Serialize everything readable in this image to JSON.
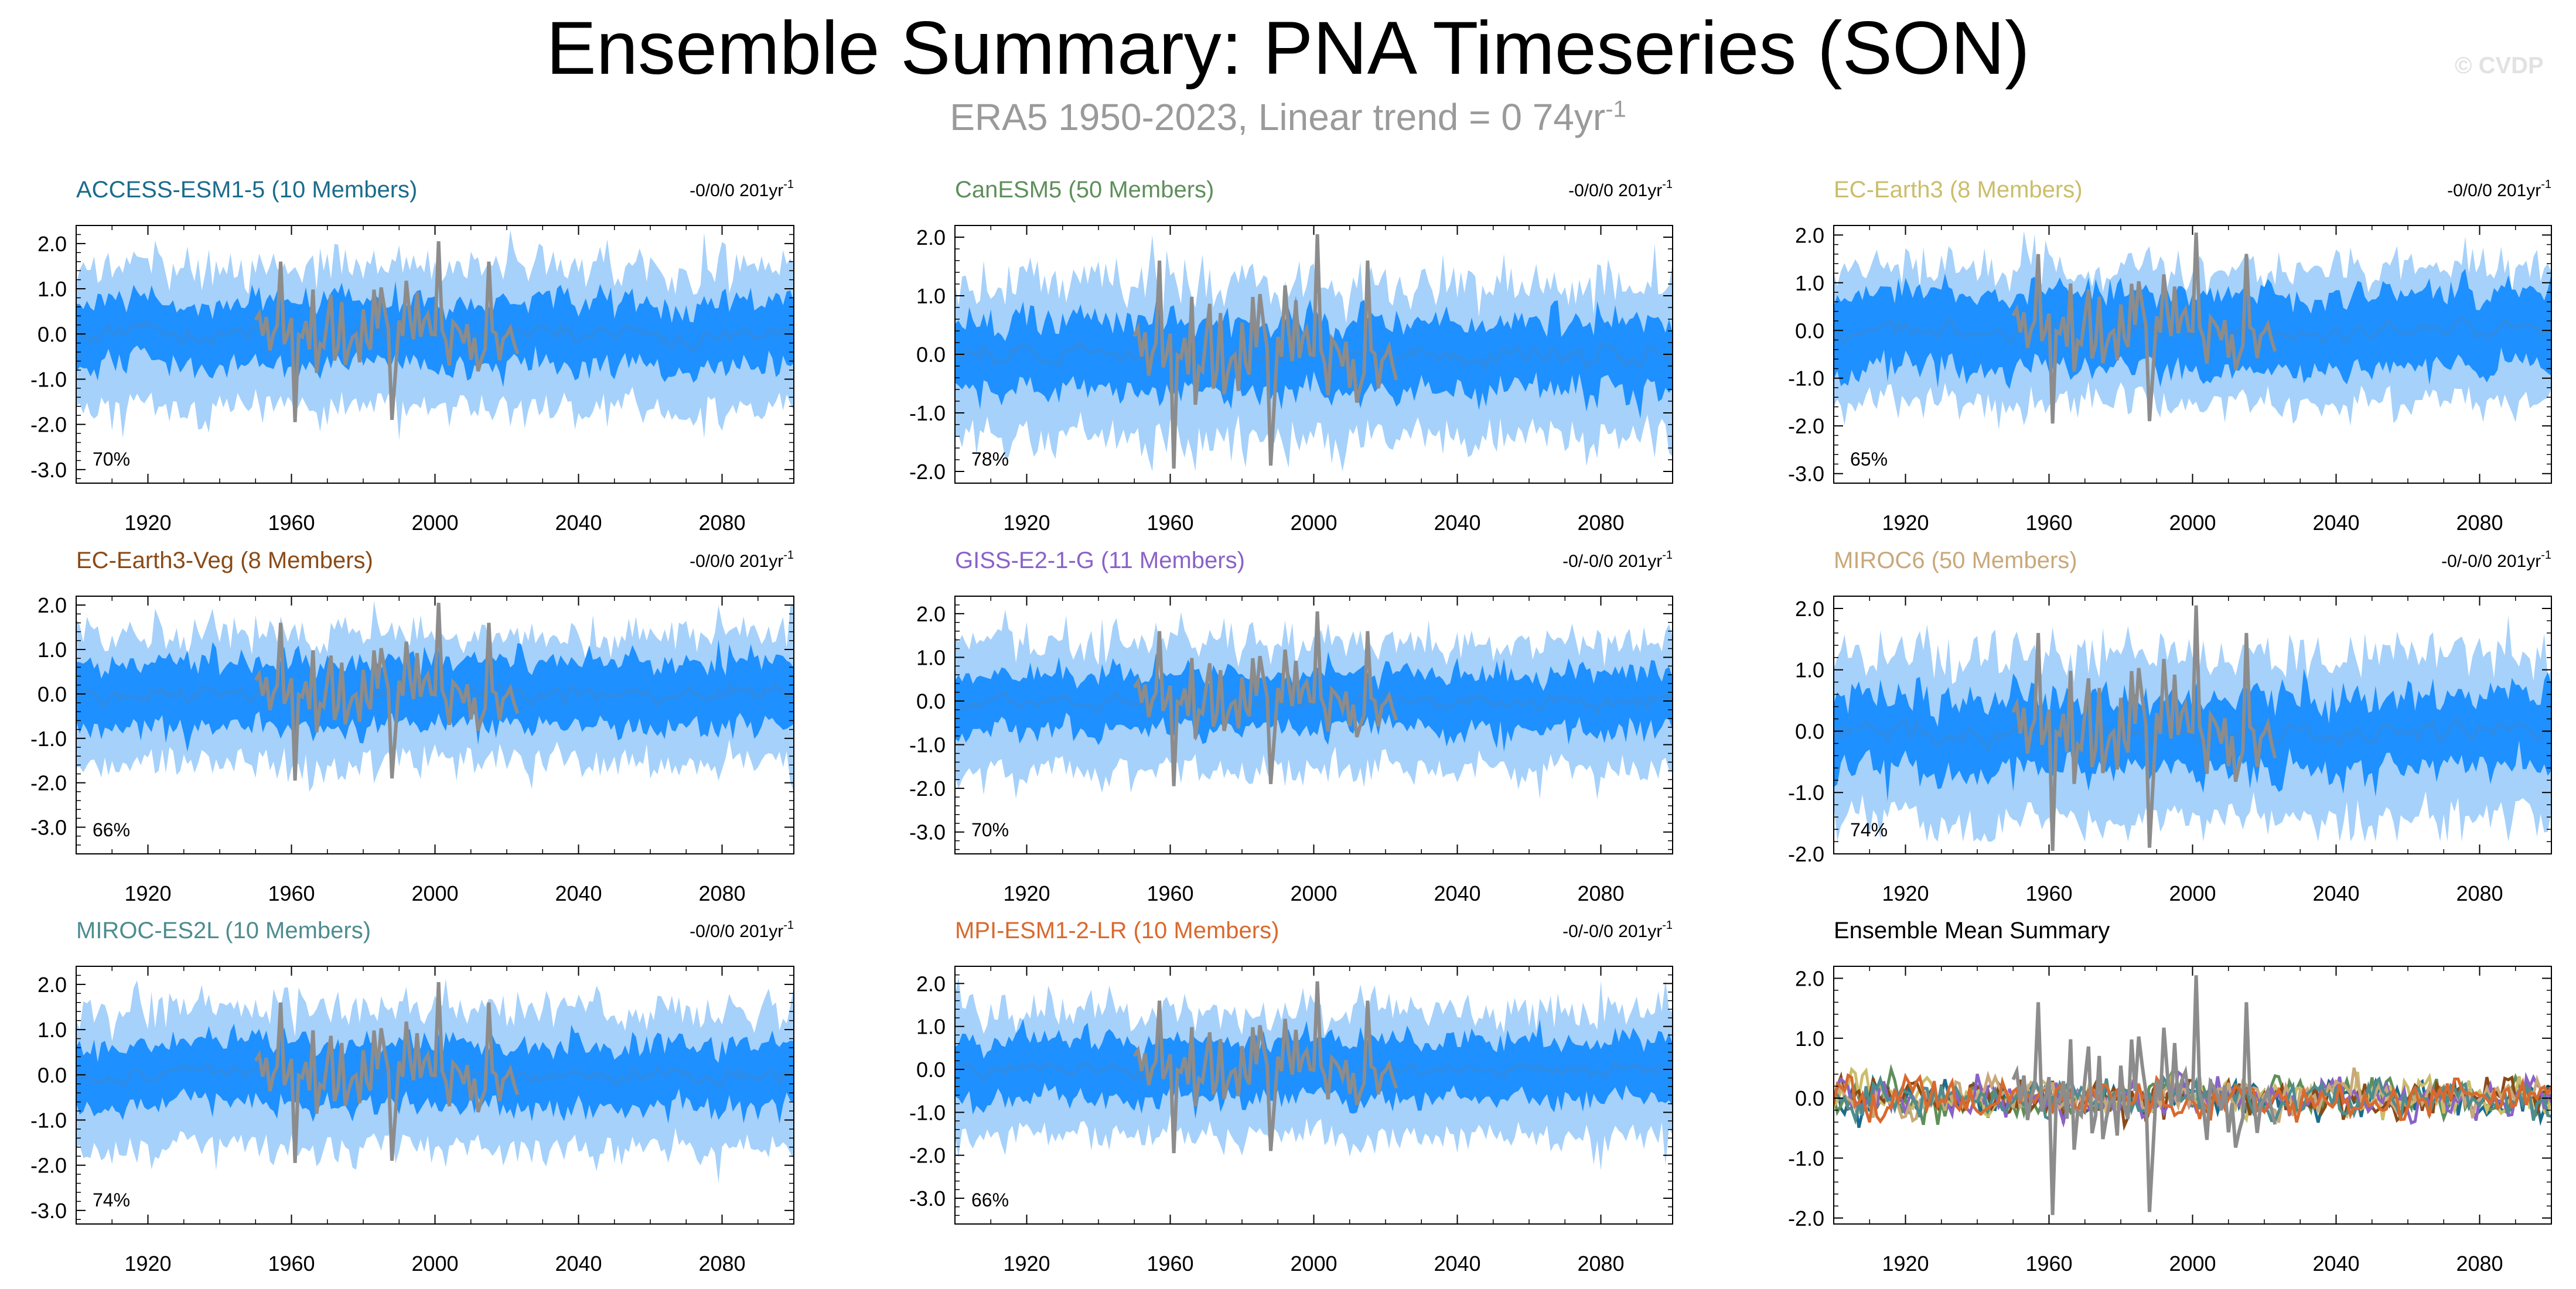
{
  "title": "Ensemble Summary: PNA Timeseries (SON)",
  "subtitle": {
    "main": "ERA5 1950-2023, Linear trend = 0 74yr",
    "sup": "-1"
  },
  "credit": "© CVDP",
  "colors": {
    "observed": "#8c8c8c",
    "ens_mean": "#2f8ce6",
    "inner_band": "#1e90ff",
    "outer_band": "#a6d1fa",
    "axis": "#000000"
  },
  "panels": [
    {
      "title": "ACCESS-ESM1-5 (10 Members)",
      "title_color": "#1b6c8c",
      "trend_label": "-0/0/0 201yr",
      "trend_sup": "-1",
      "percent": "70%",
      "seed": 11,
      "band_inner": 0.55,
      "band_outer": 1.25,
      "obs_scale": 1.0,
      "chart_data": {
        "type": "area",
        "ylim": [
          -3.3,
          2.4
        ],
        "yticks": [
          -3.0,
          -2.0,
          -1.0,
          0.0,
          1.0,
          2.0
        ],
        "ytick_labels": [
          "-3.0",
          "-2.0",
          "-1.0",
          "0.0",
          "1.0",
          "2.0"
        ],
        "xlim": [
          1900,
          2100
        ],
        "xticks": [
          1920,
          1960,
          2000,
          2040,
          2080
        ],
        "xtick_labels": [
          "1920",
          "1960",
          "2000",
          "2040",
          "2080"
        ],
        "series": [
          {
            "name": "ERA5",
            "x_range": [
              1950,
              2023
            ]
          },
          {
            "name": "Ensemble mean",
            "x_range": [
              1900,
              2100
            ]
          }
        ]
      }
    },
    {
      "title": "CanESM5 (50 Members)",
      "title_color": "#5e8f5a",
      "trend_label": "-0/0/0 201yr",
      "trend_sup": "-1",
      "percent": "78%",
      "seed": 23,
      "band_inner": 0.45,
      "band_outer": 1.05,
      "obs_scale": 1.0,
      "chart_data": {
        "type": "area",
        "ylim": [
          -2.2,
          2.2
        ],
        "yticks": [
          -2.0,
          -1.0,
          0.0,
          1.0,
          2.0
        ],
        "ytick_labels": [
          "-2.0",
          "-1.0",
          "0.0",
          "1.0",
          "2.0"
        ],
        "xlim": [
          1900,
          2100
        ],
        "xticks": [
          1920,
          1960,
          2000,
          2040,
          2080
        ],
        "xtick_labels": [
          "1920",
          "1960",
          "2000",
          "2040",
          "2080"
        ],
        "series": [
          {
            "name": "ERA5",
            "x_range": [
              1950,
              2023
            ]
          },
          {
            "name": "Ensemble mean",
            "x_range": [
              1900,
              2100
            ]
          }
        ]
      }
    },
    {
      "title": "EC-Earth3 (8 Members)",
      "title_color": "#cbbd6a",
      "trend_label": "-0/0/0 201yr",
      "trend_sup": "-1",
      "percent": "65%",
      "seed": 37,
      "band_inner": 0.65,
      "band_outer": 1.15,
      "obs_scale": 1.0,
      "chart_data": {
        "type": "area",
        "ylim": [
          -3.2,
          2.2
        ],
        "yticks": [
          -3.0,
          -2.0,
          -1.0,
          0.0,
          1.0,
          2.0
        ],
        "ytick_labels": [
          "-3.0",
          "-2.0",
          "-1.0",
          "0.0",
          "1.0",
          "2.0"
        ],
        "xlim": [
          1900,
          2100
        ],
        "xticks": [
          1920,
          1960,
          2000,
          2040,
          2080
        ],
        "xtick_labels": [
          "1920",
          "1960",
          "2000",
          "2040",
          "2080"
        ],
        "series": [
          {
            "name": "ERA5",
            "x_range": [
              1950,
              2023
            ]
          },
          {
            "name": "Ensemble mean",
            "x_range": [
              1900,
              2100
            ]
          }
        ]
      }
    },
    {
      "title": "EC-Earth3-Veg (8 Members)",
      "title_color": "#8a4a16",
      "trend_label": "-0/0/0 201yr",
      "trend_sup": "-1",
      "percent": "66%",
      "seed": 41,
      "band_inner": 0.6,
      "band_outer": 1.15,
      "obs_scale": 1.0,
      "chart_data": {
        "type": "area",
        "ylim": [
          -3.6,
          2.2
        ],
        "yticks": [
          -3.0,
          -2.0,
          -1.0,
          0.0,
          1.0,
          2.0
        ],
        "ytick_labels": [
          "-3.0",
          "-2.0",
          "-1.0",
          "0.0",
          "1.0",
          "2.0"
        ],
        "xlim": [
          1900,
          2100
        ],
        "xticks": [
          1920,
          1960,
          2000,
          2040,
          2080
        ],
        "xtick_labels": [
          "1920",
          "1960",
          "2000",
          "2040",
          "2080"
        ],
        "series": [
          {
            "name": "ERA5",
            "x_range": [
              1950,
              2023
            ]
          },
          {
            "name": "Ensemble mean",
            "x_range": [
              1900,
              2100
            ]
          }
        ]
      }
    },
    {
      "title": "GISS-E2-1-G (11 Members)",
      "title_color": "#8a62c8",
      "trend_label": "-0/-0/0 201yr",
      "trend_sup": "-1",
      "percent": "70%",
      "seed": 53,
      "band_inner": 0.5,
      "band_outer": 1.2,
      "obs_scale": 1.0,
      "chart_data": {
        "type": "area",
        "ylim": [
          -3.5,
          2.4
        ],
        "yticks": [
          -3.0,
          -2.0,
          -1.0,
          0.0,
          1.0,
          2.0
        ],
        "ytick_labels": [
          "-3.0",
          "-2.0",
          "-1.0",
          "0.0",
          "1.0",
          "2.0"
        ],
        "xlim": [
          1900,
          2100
        ],
        "xticks": [
          1920,
          1960,
          2000,
          2040,
          2080
        ],
        "xtick_labels": [
          "1920",
          "1960",
          "2000",
          "2040",
          "2080"
        ],
        "series": [
          {
            "name": "ERA5",
            "x_range": [
              1950,
              2023
            ]
          },
          {
            "name": "Ensemble mean",
            "x_range": [
              1900,
              2100
            ]
          }
        ]
      }
    },
    {
      "title": "MIROC6 (50 Members)",
      "title_color": "#c9a87a",
      "trend_label": "-0/-0/0 201yr",
      "trend_sup": "-1",
      "percent": "74%",
      "seed": 67,
      "band_inner": 0.45,
      "band_outer": 1.05,
      "obs_scale": 1.0,
      "chart_data": {
        "type": "area",
        "ylim": [
          -2.0,
          2.2
        ],
        "yticks": [
          -2.0,
          -1.0,
          0.0,
          1.0,
          2.0
        ],
        "ytick_labels": [
          "-2.0",
          "-1.0",
          "0.0",
          "1.0",
          "2.0"
        ],
        "xlim": [
          1900,
          2100
        ],
        "xticks": [
          1920,
          1960,
          2000,
          2040,
          2080
        ],
        "xtick_labels": [
          "1920",
          "1960",
          "2000",
          "2040",
          "2080"
        ],
        "series": [
          {
            "name": "ERA5",
            "x_range": [
              1950,
              2023
            ]
          },
          {
            "name": "Ensemble mean",
            "x_range": [
              1900,
              2100
            ]
          }
        ]
      }
    },
    {
      "title": "MIROC-ES2L (10 Members)",
      "title_color": "#4d8c8f",
      "trend_label": "-0/0/0 201yr",
      "trend_sup": "-1",
      "percent": "74%",
      "seed": 79,
      "band_inner": 0.55,
      "band_outer": 1.25,
      "obs_scale": 1.0,
      "chart_data": {
        "type": "area",
        "ylim": [
          -3.3,
          2.4
        ],
        "yticks": [
          -3.0,
          -2.0,
          -1.0,
          0.0,
          1.0,
          2.0
        ],
        "ytick_labels": [
          "-3.0",
          "-2.0",
          "-1.0",
          "0.0",
          "1.0",
          "2.0"
        ],
        "xlim": [
          1900,
          2100
        ],
        "xticks": [
          1920,
          1960,
          2000,
          2040,
          2080
        ],
        "xtick_labels": [
          "1920",
          "1960",
          "2000",
          "2040",
          "2080"
        ],
        "series": [
          {
            "name": "ERA5",
            "x_range": [
              1950,
              2023
            ]
          },
          {
            "name": "Ensemble mean",
            "x_range": [
              1900,
              2100
            ]
          }
        ]
      }
    },
    {
      "title": "MPI-ESM1-2-LR (10 Members)",
      "title_color": "#d9692e",
      "trend_label": "-0/-0/0 201yr",
      "trend_sup": "-1",
      "percent": "66%",
      "seed": 83,
      "band_inner": 0.55,
      "band_outer": 1.2,
      "obs_scale": 1.0,
      "chart_data": {
        "type": "area",
        "ylim": [
          -3.6,
          2.4
        ],
        "yticks": [
          -3.0,
          -2.0,
          -1.0,
          0.0,
          1.0,
          2.0
        ],
        "ytick_labels": [
          "-3.0",
          "-2.0",
          "-1.0",
          "0.0",
          "1.0",
          "2.0"
        ],
        "xlim": [
          1900,
          2100
        ],
        "xticks": [
          1920,
          1960,
          2000,
          2040,
          2080
        ],
        "xtick_labels": [
          "1920",
          "1960",
          "2000",
          "2040",
          "2080"
        ],
        "series": [
          {
            "name": "ERA5",
            "x_range": [
              1950,
              2023
            ]
          },
          {
            "name": "Ensemble mean",
            "x_range": [
              1900,
              2100
            ]
          }
        ]
      }
    }
  ],
  "summary": {
    "title": "Ensemble Mean Summary",
    "title_color": "#000000",
    "chart_data": {
      "type": "line",
      "ylim": [
        -2.1,
        2.2
      ],
      "yticks": [
        -2.0,
        -1.0,
        0.0,
        1.0,
        2.0
      ],
      "ytick_labels": [
        "-2.0",
        "-1.0",
        "0.0",
        "1.0",
        "2.0"
      ],
      "xlim": [
        1900,
        2100
      ],
      "xticks": [
        1920,
        1960,
        2000,
        2040,
        2080
      ],
      "xtick_labels": [
        "1920",
        "1960",
        "2000",
        "2040",
        "2080"
      ],
      "series": [
        {
          "name": "ACCESS-ESM1-5",
          "color": "#1b6c8c",
          "seed": 101
        },
        {
          "name": "CanESM5",
          "color": "#5e8f5a",
          "seed": 102
        },
        {
          "name": "EC-Earth3",
          "color": "#cbbd6a",
          "seed": 103
        },
        {
          "name": "EC-Earth3-Veg",
          "color": "#8a4a16",
          "seed": 104
        },
        {
          "name": "GISS-E2-1-G",
          "color": "#8a62c8",
          "seed": 105
        },
        {
          "name": "MIROC6",
          "color": "#c9a87a",
          "seed": 106
        },
        {
          "name": "MIROC-ES2L",
          "color": "#4d8c8f",
          "seed": 107
        },
        {
          "name": "MPI-ESM1-2-LR",
          "color": "#d9692e",
          "seed": 108
        },
        {
          "name": "ERA5",
          "color": "#8c8c8c",
          "x_range": [
            1950,
            2023
          ]
        }
      ]
    }
  }
}
